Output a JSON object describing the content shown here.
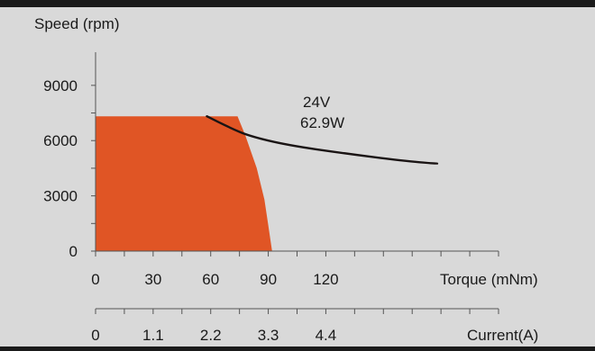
{
  "chart_data": {
    "type": "area",
    "ylabel": "Speed (rpm)",
    "xlabel": "Torque (mNm)",
    "x2label": "Current(A)",
    "xlim": [
      0,
      210
    ],
    "ylim": [
      0,
      10800
    ],
    "y_ticks": [
      "0",
      "3000",
      "6000",
      "9000"
    ],
    "y_tick_values": [
      0,
      3000,
      6000,
      9000
    ],
    "x_tick_labels": [
      "0",
      "30",
      "60",
      "90",
      "120"
    ],
    "x_tick_values": [
      0,
      30,
      60,
      90,
      120
    ],
    "x2_tick_labels": [
      "0",
      "1.1",
      "2.2",
      "3.3",
      "4.4"
    ],
    "x2_tick_values": [
      0,
      30,
      60,
      90,
      120
    ],
    "annotation": [
      "24V",
      "62.9W"
    ],
    "series": [
      {
        "kind": "operating-region",
        "x": [
          0,
          74,
          78,
          84,
          88,
          90,
          92
        ],
        "y": [
          7320,
          7320,
          6300,
          4500,
          2800,
          1400,
          0
        ],
        "color": "#e05525"
      },
      {
        "kind": "curve",
        "x": [
          58,
          70,
          80,
          100,
          130,
          160,
          178
        ],
        "y": [
          7320,
          6700,
          6250,
          5750,
          5300,
          4900,
          4750
        ],
        "color": "#1a1414"
      }
    ],
    "colors": {
      "background": "#d9d9d9",
      "frame": "#1a1a1a"
    }
  }
}
